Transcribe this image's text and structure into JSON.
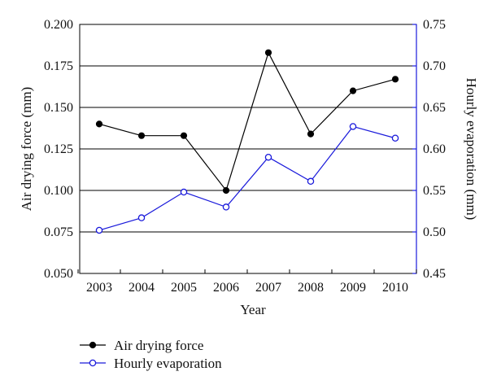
{
  "chart_data": {
    "type": "line",
    "categories": [
      "2003",
      "2004",
      "2005",
      "2006",
      "2007",
      "2008",
      "2009",
      "2010"
    ],
    "xlabel": "Year",
    "ylabel_left": "Air drying force (mm)",
    "ylabel_right": "Hourly evaporation (mm)",
    "ylim_left": [
      0.05,
      0.2
    ],
    "ylim_right": [
      0.45,
      0.75
    ],
    "yticks_left": [
      "0.050",
      "0.075",
      "0.100",
      "0.125",
      "0.150",
      "0.175",
      "0.200"
    ],
    "yticks_right": [
      "0.45",
      "0.50",
      "0.55",
      "0.60",
      "0.65",
      "0.70",
      "0.75"
    ],
    "grid": "horizontal",
    "legend_placement": "bottom-left",
    "series": [
      {
        "name": "Air drying force",
        "axis": "left",
        "color": "#000000",
        "marker": "filled-circle",
        "values": [
          0.14,
          0.133,
          0.133,
          0.1,
          0.183,
          0.134,
          0.16,
          0.167
        ]
      },
      {
        "name": "Hourly evaporation",
        "axis": "right",
        "color": "#1a1adb",
        "marker": "open-circle",
        "values": [
          0.502,
          0.517,
          0.548,
          0.53,
          0.59,
          0.561,
          0.627,
          0.613
        ]
      }
    ]
  }
}
